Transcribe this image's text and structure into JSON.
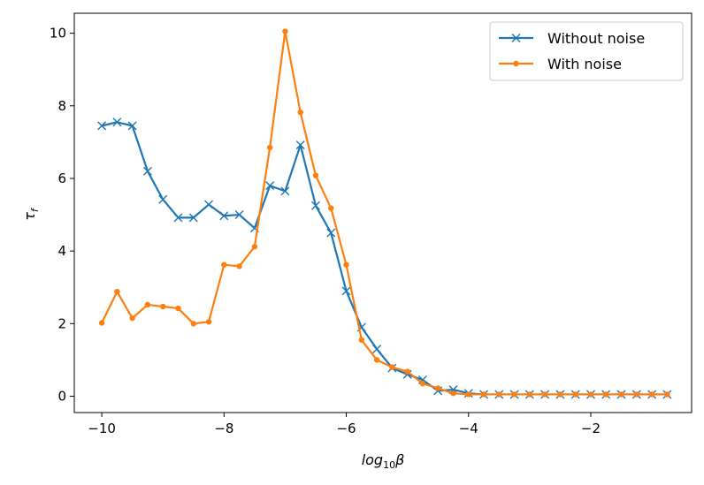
{
  "chart_data": {
    "type": "line",
    "xlabel": "log",
    "xlabel_sub": "10",
    "xlabel_tail": "β",
    "ylabel": "τ",
    "ylabel_sub": "f",
    "xlim": [
      -10.45,
      -0.35
    ],
    "ylim": [
      -0.45,
      10.55
    ],
    "x_ticks": [
      -10,
      -8,
      -6,
      -4,
      -2
    ],
    "x_tick_labels": [
      "−10",
      "−8",
      "−6",
      "−4",
      "−2"
    ],
    "y_ticks": [
      0,
      2,
      4,
      6,
      8,
      10
    ],
    "y_tick_labels": [
      "0",
      "2",
      "4",
      "6",
      "8",
      "10"
    ],
    "legend_position": "top-right",
    "x": [
      -10.0,
      -9.75,
      -9.5,
      -9.25,
      -9.0,
      -8.75,
      -8.5,
      -8.25,
      -8.0,
      -7.75,
      -7.5,
      -7.25,
      -7.0,
      -6.75,
      -6.5,
      -6.25,
      -6.0,
      -5.75,
      -5.5,
      -5.25,
      -5.0,
      -4.75,
      -4.5,
      -4.25,
      -4.0,
      -3.75,
      -3.5,
      -3.25,
      -3.0,
      -2.75,
      -2.5,
      -2.25,
      -2.0,
      -1.75,
      -1.5,
      -1.25,
      -1.0,
      -0.75
    ],
    "series": [
      {
        "name": "Without noise",
        "color": "#1f77b4",
        "marker": "x",
        "values": [
          7.45,
          7.55,
          7.45,
          6.2,
          5.42,
          4.92,
          4.92,
          5.28,
          4.97,
          5.0,
          4.63,
          5.8,
          5.65,
          6.92,
          5.25,
          4.5,
          2.9,
          1.9,
          1.3,
          0.78,
          0.6,
          0.45,
          0.15,
          0.18,
          0.08,
          0.05,
          0.05,
          0.05,
          0.05,
          0.05,
          0.05,
          0.05,
          0.05,
          0.05,
          0.05,
          0.05,
          0.05,
          0.05
        ]
      },
      {
        "name": "With noise",
        "color": "#ff7f0e",
        "marker": "dot",
        "values": [
          2.02,
          2.88,
          2.15,
          2.52,
          2.47,
          2.42,
          2.0,
          2.05,
          3.62,
          3.58,
          4.12,
          6.85,
          10.05,
          7.82,
          6.08,
          5.18,
          3.62,
          1.55,
          1.0,
          0.8,
          0.68,
          0.35,
          0.22,
          0.08,
          0.05,
          0.05,
          0.05,
          0.05,
          0.05,
          0.05,
          0.05,
          0.05,
          0.05,
          0.05,
          0.05,
          0.05,
          0.05,
          0.05
        ]
      }
    ]
  }
}
